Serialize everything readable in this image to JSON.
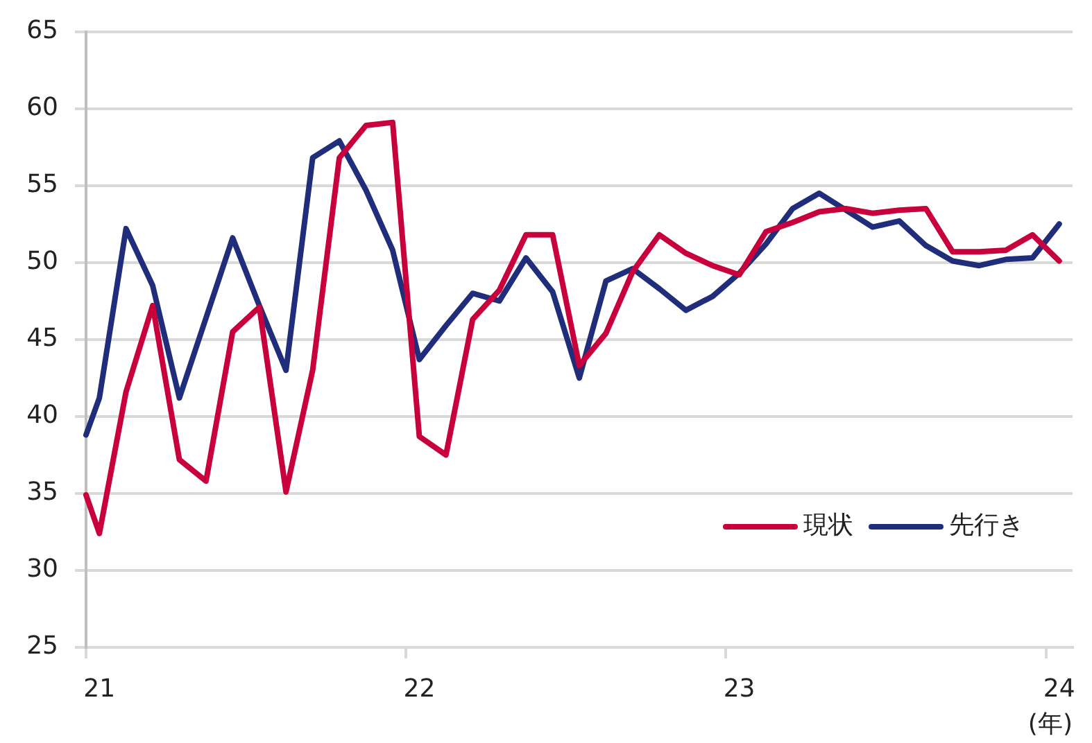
{
  "chart_data": {
    "type": "line",
    "xlabel": "(年)",
    "x": [
      21,
      21.0417,
      21.125,
      21.2083,
      21.2917,
      21.375,
      21.4583,
      21.5417,
      21.625,
      21.7083,
      21.7917,
      21.875,
      21.9583,
      22.0417,
      22.125,
      22.2083,
      22.2917,
      22.375,
      22.4583,
      22.5417,
      22.625,
      22.7083,
      22.7917,
      22.875,
      22.9583,
      23.0417,
      23.125,
      23.2083,
      23.2917,
      23.375,
      23.4583,
      23.5417,
      23.625,
      23.7083,
      23.7917,
      23.875,
      23.9583,
      24.0417
    ],
    "series": [
      {
        "name": "現状",
        "color": "#c8003c",
        "values": [
          34.9,
          32.4,
          41.6,
          47.2,
          37.2,
          35.8,
          45.5,
          47.1,
          35.1,
          43.0,
          56.8,
          58.9,
          59.1,
          38.7,
          37.5,
          46.3,
          48.2,
          51.8,
          51.8,
          43.3,
          45.4,
          49.4,
          51.8,
          50.6,
          49.8,
          49.2,
          52.0,
          52.6,
          53.3,
          53.5,
          53.2,
          53.4,
          53.5,
          50.7,
          50.7,
          50.8,
          51.8,
          50.1
        ]
      },
      {
        "name": "先行き",
        "color": "#1f2d7b",
        "values": [
          38.8,
          41.2,
          52.2,
          48.5,
          41.2,
          46.4,
          51.6,
          47.2,
          43.0,
          56.8,
          57.9,
          54.7,
          50.8,
          43.7,
          45.9,
          48.0,
          47.5,
          50.3,
          48.1,
          42.5,
          48.8,
          49.6,
          48.3,
          46.9,
          47.8,
          49.3,
          51.2,
          53.5,
          54.5,
          53.4,
          52.3,
          52.7,
          51.1,
          50.1,
          49.8,
          50.2,
          50.3,
          52.5
        ]
      }
    ],
    "xlim": [
      21,
      24.0833
    ],
    "xticks": [
      {
        "value": 21,
        "label": null
      },
      {
        "value": 21.0417,
        "label": "21"
      },
      {
        "value": 22,
        "label": null
      },
      {
        "value": 22.0417,
        "label": "22"
      },
      {
        "value": 23,
        "label": null
      },
      {
        "value": 23.0417,
        "label": "23"
      },
      {
        "value": 24,
        "label": null
      },
      {
        "value": 24.0417,
        "label": "24"
      }
    ],
    "ylim": [
      25,
      65
    ],
    "yticks": [
      25,
      30,
      35,
      40,
      45,
      50,
      55,
      60,
      65
    ],
    "grid": "y",
    "legend": "bottom right",
    "marker": "none"
  }
}
